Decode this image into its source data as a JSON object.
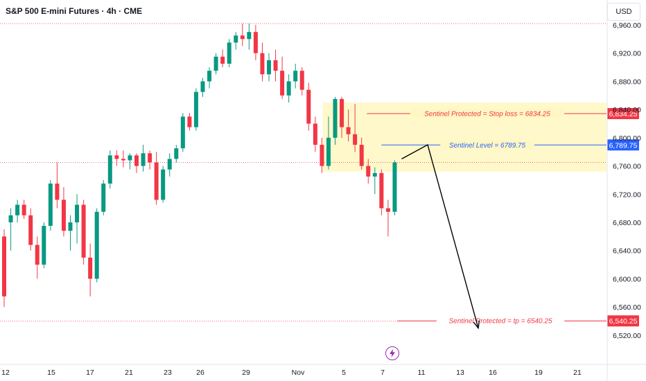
{
  "header": {
    "title": "S&P 500 E-mini Futures · 4h · CME",
    "currency": "USD"
  },
  "icons": {
    "event": "lightning-icon"
  },
  "colors": {
    "up": "#089981",
    "down": "#f23645",
    "zone": "#fff7c2",
    "level": "#2962ff",
    "arrow": "#000000"
  },
  "chart_data": {
    "type": "candlestick",
    "title": "S&P 500 E-mini Futures · 4h · CME",
    "ylim": [
      6510,
      6975
    ],
    "y_ticks": [
      6520,
      6560,
      6600,
      6640,
      6680,
      6720,
      6760,
      6800,
      6840,
      6880,
      6920,
      6960
    ],
    "y_tick_labels": [
      "6,520.00",
      "6,560.00",
      "6,600.00",
      "6,640.00",
      "6,680.00",
      "6,720.00",
      "6,760.00",
      "6,800.00",
      "6,840.00",
      "6,880.00",
      "6,920.00",
      "6,960.00"
    ],
    "x_tick_labels": [
      "12",
      "15",
      "17",
      "21",
      "23",
      "26",
      "29",
      "Nov",
      "5",
      "7",
      "11",
      "13",
      "16",
      "19",
      "21"
    ],
    "grid": false,
    "candles": [
      {
        "o": 6660,
        "h": 6670,
        "l": 6560,
        "c": 6575
      },
      {
        "o": 6680,
        "h": 6700,
        "l": 6640,
        "c": 6690
      },
      {
        "o": 6690,
        "h": 6712,
        "l": 6680,
        "c": 6705
      },
      {
        "o": 6705,
        "h": 6712,
        "l": 6685,
        "c": 6690
      },
      {
        "o": 6690,
        "h": 6700,
        "l": 6640,
        "c": 6648
      },
      {
        "o": 6648,
        "h": 6660,
        "l": 6600,
        "c": 6620
      },
      {
        "o": 6620,
        "h": 6680,
        "l": 6615,
        "c": 6675
      },
      {
        "o": 6675,
        "h": 6740,
        "l": 6668,
        "c": 6735
      },
      {
        "o": 6735,
        "h": 6765,
        "l": 6700,
        "c": 6712
      },
      {
        "o": 6712,
        "h": 6730,
        "l": 6660,
        "c": 6668
      },
      {
        "o": 6668,
        "h": 6690,
        "l": 6640,
        "c": 6680
      },
      {
        "o": 6680,
        "h": 6720,
        "l": 6650,
        "c": 6705
      },
      {
        "o": 6705,
        "h": 6712,
        "l": 6620,
        "c": 6630
      },
      {
        "o": 6630,
        "h": 6650,
        "l": 6575,
        "c": 6600
      },
      {
        "o": 6600,
        "h": 6700,
        "l": 6595,
        "c": 6695
      },
      {
        "o": 6695,
        "h": 6740,
        "l": 6690,
        "c": 6735
      },
      {
        "o": 6735,
        "h": 6782,
        "l": 6728,
        "c": 6775
      },
      {
        "o": 6775,
        "h": 6782,
        "l": 6760,
        "c": 6770
      },
      {
        "o": 6770,
        "h": 6782,
        "l": 6758,
        "c": 6768
      },
      {
        "o": 6768,
        "h": 6778,
        "l": 6755,
        "c": 6775
      },
      {
        "o": 6775,
        "h": 6778,
        "l": 6750,
        "c": 6760
      },
      {
        "o": 6760,
        "h": 6790,
        "l": 6752,
        "c": 6778
      },
      {
        "o": 6778,
        "h": 6782,
        "l": 6755,
        "c": 6765
      },
      {
        "o": 6765,
        "h": 6780,
        "l": 6705,
        "c": 6712
      },
      {
        "o": 6712,
        "h": 6760,
        "l": 6708,
        "c": 6755
      },
      {
        "o": 6755,
        "h": 6778,
        "l": 6745,
        "c": 6770
      },
      {
        "o": 6770,
        "h": 6790,
        "l": 6765,
        "c": 6785
      },
      {
        "o": 6785,
        "h": 6835,
        "l": 6780,
        "c": 6830
      },
      {
        "o": 6830,
        "h": 6835,
        "l": 6810,
        "c": 6815
      },
      {
        "o": 6815,
        "h": 6870,
        "l": 6810,
        "c": 6865
      },
      {
        "o": 6865,
        "h": 6885,
        "l": 6858,
        "c": 6880
      },
      {
        "o": 6880,
        "h": 6900,
        "l": 6870,
        "c": 6895
      },
      {
        "o": 6895,
        "h": 6920,
        "l": 6890,
        "c": 6915
      },
      {
        "o": 6915,
        "h": 6925,
        "l": 6900,
        "c": 6905
      },
      {
        "o": 6905,
        "h": 6940,
        "l": 6900,
        "c": 6935
      },
      {
        "o": 6935,
        "h": 6950,
        "l": 6925,
        "c": 6945
      },
      {
        "o": 6945,
        "h": 6962,
        "l": 6930,
        "c": 6940
      },
      {
        "o": 6940,
        "h": 6962,
        "l": 6925,
        "c": 6950
      },
      {
        "o": 6950,
        "h": 6960,
        "l": 6910,
        "c": 6920
      },
      {
        "o": 6920,
        "h": 6935,
        "l": 6880,
        "c": 6890
      },
      {
        "o": 6890,
        "h": 6920,
        "l": 6880,
        "c": 6910
      },
      {
        "o": 6910,
        "h": 6925,
        "l": 6880,
        "c": 6895
      },
      {
        "o": 6895,
        "h": 6915,
        "l": 6855,
        "c": 6860
      },
      {
        "o": 6860,
        "h": 6890,
        "l": 6850,
        "c": 6880
      },
      {
        "o": 6880,
        "h": 6905,
        "l": 6870,
        "c": 6895
      },
      {
        "o": 6895,
        "h": 6900,
        "l": 6860,
        "c": 6868
      },
      {
        "o": 6868,
        "h": 6878,
        "l": 6810,
        "c": 6820
      },
      {
        "o": 6820,
        "h": 6830,
        "l": 6780,
        "c": 6790
      },
      {
        "o": 6790,
        "h": 6800,
        "l": 6750,
        "c": 6760
      },
      {
        "o": 6760,
        "h": 6830,
        "l": 6755,
        "c": 6800
      },
      {
        "o": 6800,
        "h": 6858,
        "l": 6790,
        "c": 6855
      },
      {
        "o": 6855,
        "h": 6858,
        "l": 6800,
        "c": 6815
      },
      {
        "o": 6815,
        "h": 6840,
        "l": 6795,
        "c": 6805
      },
      {
        "o": 6805,
        "h": 6848,
        "l": 6780,
        "c": 6790
      },
      {
        "o": 6790,
        "h": 6800,
        "l": 6755,
        "c": 6760
      },
      {
        "o": 6760,
        "h": 6770,
        "l": 6735,
        "c": 6745
      },
      {
        "o": 6745,
        "h": 6758,
        "l": 6720,
        "c": 6750
      },
      {
        "o": 6750,
        "h": 6755,
        "l": 6690,
        "c": 6700
      },
      {
        "o": 6700,
        "h": 6712,
        "l": 6660,
        "c": 6695
      },
      {
        "o": 6695,
        "h": 6768,
        "l": 6690,
        "c": 6765
      }
    ],
    "levels": [
      {
        "name": "stop",
        "value": 6834.25,
        "label": "Sentinel Protected = Stop loss = 6834.25",
        "tag": "6,834.25"
      },
      {
        "name": "level",
        "value": 6789.75,
        "label": "Sentinel Level = 6789.75",
        "tag": "6,789.75"
      },
      {
        "name": "tp",
        "value": 6540.25,
        "label": "Sentinel Protected = tp = 6540.25",
        "tag": "6,540.25"
      }
    ],
    "zone": {
      "top": 6850,
      "bottom": 6752
    },
    "arrow_path": [
      [
        6770,
        0
      ],
      [
        6790,
        1
      ],
      [
        6530,
        2
      ]
    ]
  }
}
